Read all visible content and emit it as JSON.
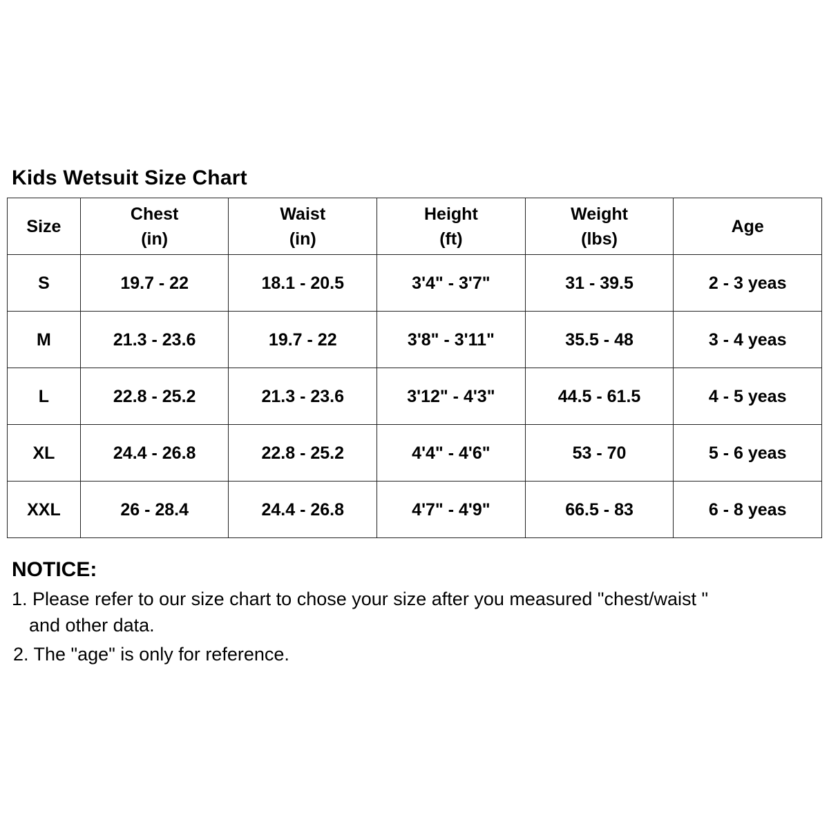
{
  "title": "Kids Wetsuit Size Chart",
  "table": {
    "headers": [
      {
        "line1": "Size",
        "line2": ""
      },
      {
        "line1": "Chest",
        "line2": "(in)"
      },
      {
        "line1": "Waist",
        "line2": "(in)"
      },
      {
        "line1": "Height",
        "line2": "(ft)"
      },
      {
        "line1": "Weight",
        "line2": "(lbs)"
      },
      {
        "line1": "Age",
        "line2": ""
      }
    ],
    "rows": [
      [
        "S",
        "19.7 - 22",
        "18.1 - 20.5",
        "3'4\" - 3'7\"",
        "31 - 39.5",
        "2 - 3 yeas"
      ],
      [
        "M",
        "21.3 - 23.6",
        "19.7 - 22",
        "3'8\" - 3'11\"",
        "35.5 - 48",
        "3 - 4 yeas"
      ],
      [
        "L",
        "22.8 - 25.2",
        "21.3 - 23.6",
        "3'12\" - 4'3\"",
        "44.5 - 61.5",
        "4 - 5 yeas"
      ],
      [
        "XL",
        "24.4 - 26.8",
        "22.8 - 25.2",
        "4'4\" - 4'6\"",
        "53 - 70",
        "5 - 6 yeas"
      ],
      [
        "XXL",
        "26 - 28.4",
        "24.4 - 26.8",
        "4'7\" - 4'9\"",
        "66.5 - 83",
        "6 - 8 yeas"
      ]
    ]
  },
  "notice": {
    "title": "NOTICE:",
    "item1_line1": "1. Please refer to our size chart to chose your size after you measured \"chest/waist \"",
    "item1_line2": "and other data.",
    "item2": "2. The \"age\" is only for reference."
  }
}
